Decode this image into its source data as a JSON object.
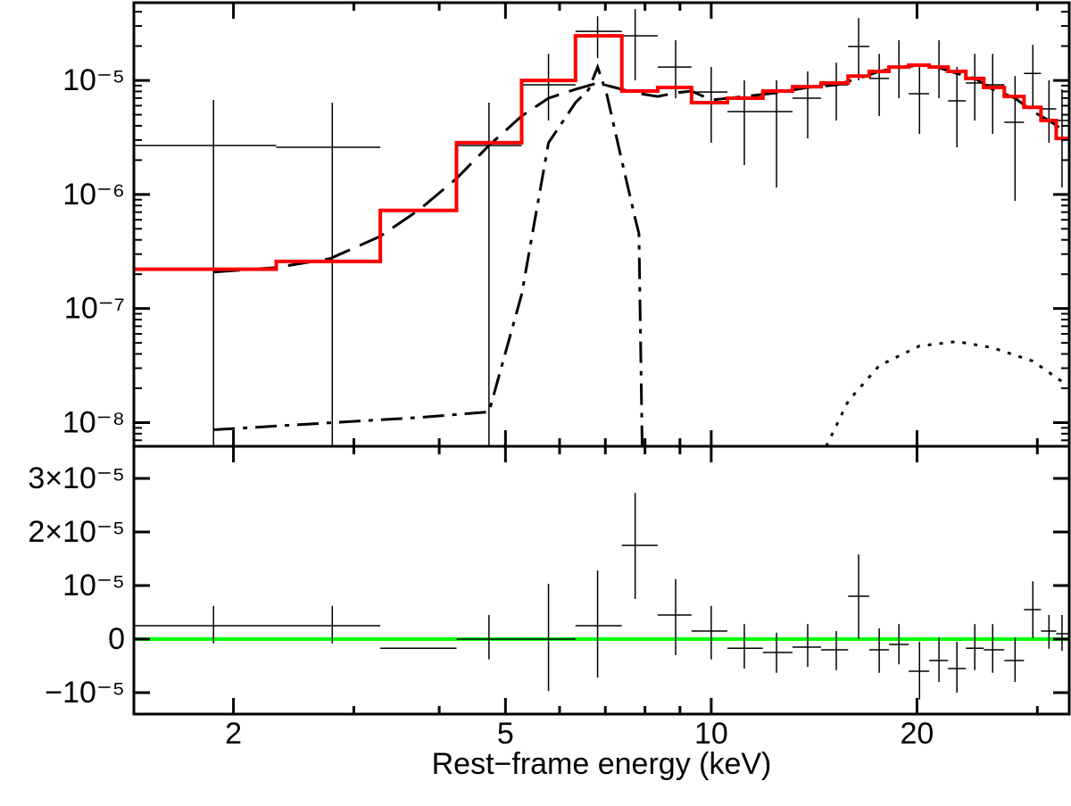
{
  "chart_data": [
    {
      "type": "spectrum",
      "xlog": true,
      "ylog": true,
      "xlim": [
        1.43,
        33.4
      ],
      "xticks": [
        2,
        5,
        10,
        20
      ],
      "xminorticks": [
        3,
        4,
        6,
        7,
        8,
        9,
        30
      ],
      "ylim": [
        6.2e-09,
        4.8e-05
      ],
      "yticks": [
        {
          "value": 1e-05,
          "label": "10⁻⁵"
        },
        {
          "value": 1e-06,
          "label": "10⁻⁶"
        },
        {
          "value": 1e-07,
          "label": "10⁻⁷"
        },
        {
          "value": 1e-08,
          "label": "10⁻⁸"
        }
      ],
      "bins": [
        1.43,
        2.31,
        3.28,
        4.24,
        5.28,
        6.33,
        7.4,
        8.35,
        9.36,
        10.56,
        11.9,
        13.15,
        14.48,
        15.86,
        17.03,
        18.2,
        19.45,
        20.84,
        22.21,
        23.58,
        25.04,
        26.84,
        28.68,
        30.37,
        31.97,
        33.4
      ],
      "x": [
        1.87,
        2.79,
        3.74,
        4.73,
        5.78,
        6.82,
        7.74,
        8.87,
        10,
        11.18,
        12.46,
        13.84,
        15.24,
        16.43,
        17.61,
        18.82,
        20.17,
        21.54,
        22.88,
        24.3,
        25.81,
        27.83,
        29.55,
        31.2,
        32.6
      ],
      "data": {
        "color": "#000000",
        "values": [
          2.69e-06,
          2.59e-06,
          null,
          2.69e-06,
          9.14e-06,
          2.69e-05,
          2.46e-05,
          1.31e-05,
          7.91e-06,
          5.33e-06,
          5.33e-06,
          6.98e-06,
          9.14e-06,
          1.98e-05,
          1.04e-05,
          1.31e-05,
          7.64e-06,
          1.31e-05,
          6.61e-06,
          9.48e-06,
          9.14e-06,
          4.29e-06,
          1.15e-05,
          5.62e-06,
          4.45e-06
        ],
        "y_low": [
          1e-09,
          1e-09,
          null,
          1e-09,
          4.45e-06,
          1.57e-05,
          1e-05,
          6.98e-06,
          2.84e-06,
          1.81e-06,
          1.15e-06,
          3.1e-06,
          4.45e-06,
          1e-05,
          4.87e-06,
          6.98e-06,
          3.4e-06,
          6.98e-06,
          2.59e-06,
          4.45e-06,
          3.4e-06,
          8.8e-07,
          5.83e-06,
          2.84e-06,
          1.15e-06
        ],
        "y_high": [
          6.73e-06,
          6.38e-06,
          null,
          6.38e-06,
          1.71e-05,
          3.65e-05,
          4.22e-05,
          2.25e-05,
          1.31e-05,
          1e-05,
          1e-05,
          1.2e-05,
          1.43e-05,
          3.52e-05,
          1.71e-05,
          2.25e-05,
          1.31e-05,
          2.25e-05,
          1.31e-05,
          1.71e-05,
          1.71e-05,
          1.09e-05,
          2.05e-05,
          1e-05,
          8.35e-06
        ]
      },
      "model": {
        "color": "#ff0000",
        "values": [
          2.21e-07,
          2.59e-07,
          7.24e-07,
          2.84e-06,
          1e-05,
          2.46e-05,
          8.06e-06,
          8.66e-06,
          6.38e-06,
          6.98e-06,
          8.06e-06,
          8.8e-06,
          9.48e-06,
          1.09e-05,
          1.2e-05,
          1.31e-05,
          1.36e-05,
          1.31e-05,
          1.2e-05,
          1.04e-05,
          8.66e-06,
          7.23e-06,
          5.8e-06,
          4.45e-06,
          3.1e-06
        ]
      },
      "components": [
        {
          "style": "dashed",
          "color": "#000000",
          "x": [
            1.87,
            2.31,
            2.77,
            3.28,
            3.74,
            4.24,
            4.73,
            5.28,
            5.78,
            6.33,
            6.82,
            7.4,
            7.74,
            8.35,
            8.87,
            9.36,
            10,
            11.18,
            12.46,
            13.84,
            15.24,
            16.43,
            17.61,
            18.82,
            20.17,
            21.54,
            22.88,
            24.3,
            25.81,
            27.83,
            29.55,
            31.2,
            32.6
          ],
          "values": [
            2.09e-07,
            2.29e-07,
            2.74e-07,
            4.3e-07,
            7.36e-07,
            1.38e-06,
            2.69e-06,
            4.87e-06,
            6.98e-06,
            8.35e-06,
            9.48e-06,
            8.35e-06,
            7.78e-06,
            7.23e-06,
            7.78e-06,
            8.06e-06,
            6.73e-06,
            7.23e-06,
            7.78e-06,
            8.66e-06,
            9.14e-06,
            1.04e-05,
            1.2e-05,
            1.29e-05,
            1.36e-05,
            1.29e-05,
            1.15e-05,
            1.04e-05,
            8.35e-06,
            6.98e-06,
            5.33e-06,
            4.45e-06,
            3.72e-06
          ]
        },
        {
          "style": "dashdot",
          "color": "#000000",
          "x": [
            1.87,
            3.74,
            4.73,
            5.28,
            5.78,
            6.33,
            6.62,
            6.82,
            7.03,
            7.4,
            7.74,
            7.84,
            7.93
          ],
          "values": [
            8.66e-09,
            1.11e-08,
            1.24e-08,
            1.33e-07,
            2.84e-06,
            6.38e-06,
            8.35e-06,
            1.31e-05,
            7.64e-06,
            1.98e-06,
            6.15e-07,
            4.53e-07,
            5e-09
          ]
        },
        {
          "style": "dotted",
          "color": "#000000",
          "x": [
            14.48,
            15.86,
            17.61,
            20.17,
            22.88,
            25.81,
            29.55,
            32.6
          ],
          "values": [
            5e-09,
            1.54e-08,
            3.16e-08,
            4.7e-08,
            5.14e-08,
            4.53e-08,
            3.46e-08,
            2.29e-08
          ]
        }
      ]
    },
    {
      "type": "residual",
      "xlog": true,
      "xlim": [
        1.43,
        33.4
      ],
      "xticks": [
        2,
        5,
        10,
        20
      ],
      "xminorticks": [
        3,
        4,
        6,
        7,
        8,
        9,
        30
      ],
      "xlabel": "Rest−frame energy (keV)",
      "ylim": [
        -1.4e-05,
        3.6e-05
      ],
      "yticks": [
        {
          "value": 3e-05,
          "label": "3×10⁻⁵"
        },
        {
          "value": 2e-05,
          "label": "2×10⁻⁵"
        },
        {
          "value": 1e-05,
          "label": "10⁻⁵"
        },
        0,
        {
          "value": -1e-05,
          "label": "−10⁻⁵"
        }
      ],
      "bins": [
        1.43,
        2.31,
        3.28,
        4.24,
        5.28,
        6.33,
        7.4,
        8.35,
        9.36,
        10.56,
        11.9,
        13.15,
        14.48,
        15.86,
        17.03,
        18.2,
        19.45,
        20.84,
        22.21,
        23.58,
        25.04,
        26.84,
        28.68,
        30.37,
        31.97,
        33.4
      ],
      "x": [
        1.87,
        2.79,
        3.74,
        4.73,
        5.78,
        6.82,
        7.74,
        8.87,
        10,
        11.18,
        12.46,
        13.84,
        15.24,
        16.43,
        17.61,
        18.82,
        20.17,
        21.54,
        22.88,
        24.3,
        25.81,
        27.83,
        29.55,
        31.2,
        32.6
      ],
      "data": {
        "color": "#000000",
        "values": [
          2.5e-06,
          2.5e-06,
          -1.7e-06,
          0,
          0,
          2.5e-06,
          1.75e-05,
          4.5e-06,
          1.5e-06,
          -1.7e-06,
          -2.5e-06,
          -1.5e-06,
          -2e-06,
          8e-06,
          -2e-06,
          -1e-06,
          -6e-06,
          -4e-06,
          -5.5e-06,
          -1.7e-06,
          -2e-06,
          -4e-06,
          5.5e-06,
          1.5e-06,
          1e-06
        ],
        "y_low": [
          -8e-07,
          -8e-07,
          -1.7e-06,
          -3.8e-06,
          -9.7e-06,
          -7.2e-06,
          7.5e-06,
          -3e-06,
          -3.8e-06,
          -5.5e-06,
          -6.3e-06,
          -5.2e-06,
          -5.8e-06,
          0,
          -6.3e-06,
          -4.7e-06,
          -1.13e-05,
          -8e-06,
          -1e-05,
          -5.8e-06,
          -6.3e-06,
          -8e-06,
          2e-07,
          -1.8e-06,
          -2.2e-06
        ],
        "y_high": [
          6.2e-06,
          6.2e-06,
          -1.7e-06,
          4.5e-06,
          1.03e-05,
          1.28e-05,
          2.73e-05,
          1.12e-05,
          6.2e-06,
          2.8e-06,
          1.2e-06,
          2.8e-06,
          1.5e-06,
          1.58e-05,
          2e-06,
          2.8e-06,
          -5e-07,
          3e-07,
          -5e-07,
          2.8e-06,
          2.8e-06,
          3e-07,
          1.08e-05,
          4.5e-06,
          4.5e-06
        ]
      },
      "zero_line": {
        "color": "#00ff00",
        "x": [
          1.43,
          33.4
        ],
        "values": [
          0,
          0
        ]
      }
    }
  ]
}
